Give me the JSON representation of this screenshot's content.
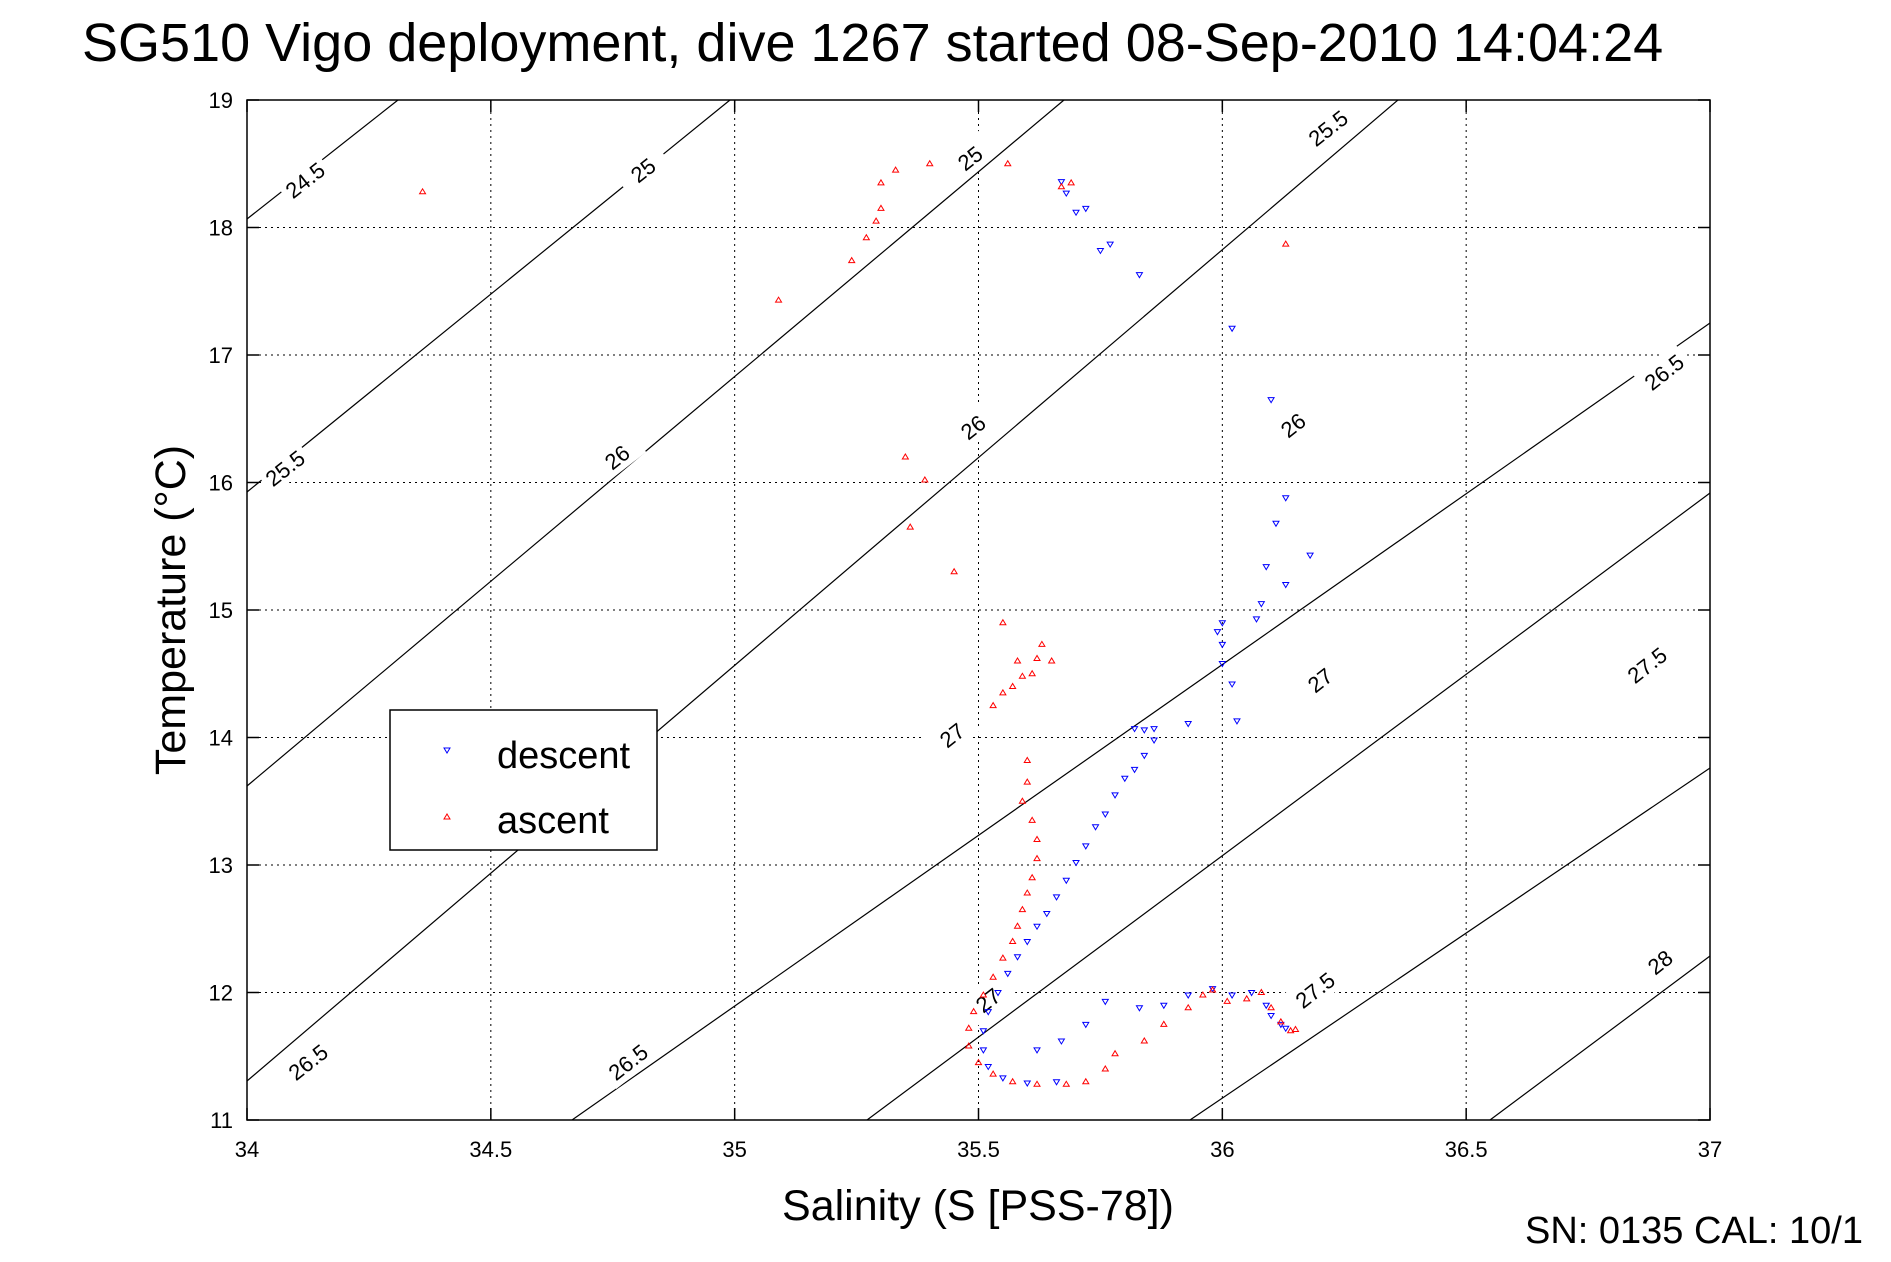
{
  "chart_data": {
    "type": "scatter",
    "title": "SG510 Vigo deployment, dive 1267 started 08-Sep-2010 14:04:24",
    "xlabel": "Salinity (S [PSS-78])",
    "ylabel": "Temperature (°C)",
    "xlim": [
      34,
      37
    ],
    "ylim": [
      11,
      19
    ],
    "xticks": [
      "34",
      "34.5",
      "35",
      "35.5",
      "36",
      "36.5",
      "37"
    ],
    "yticks": [
      "11",
      "12",
      "13",
      "14",
      "15",
      "16",
      "17",
      "18",
      "19"
    ],
    "grid": true,
    "legend_position": "left-middle",
    "isopycnal_labels": [
      "24.5",
      "25",
      "25",
      "25.5",
      "25.5",
      "26",
      "26",
      "26",
      "26.5",
      "26.5",
      "26.5",
      "27",
      "27",
      "27",
      "27.5",
      "27.5",
      "28"
    ],
    "series": [
      {
        "name": "descent",
        "color": "#0000ff",
        "marker": "triangle-down",
        "points": [
          [
            35.67,
            18.36
          ],
          [
            35.68,
            18.27
          ],
          [
            35.7,
            18.12
          ],
          [
            35.72,
            18.15
          ],
          [
            35.75,
            17.82
          ],
          [
            35.77,
            17.87
          ],
          [
            35.83,
            17.63
          ],
          [
            36.02,
            17.21
          ],
          [
            36.1,
            16.65
          ],
          [
            36.13,
            15.88
          ],
          [
            36.11,
            15.68
          ],
          [
            36.18,
            15.43
          ],
          [
            36.09,
            15.34
          ],
          [
            36.13,
            15.2
          ],
          [
            36.08,
            15.05
          ],
          [
            36.07,
            14.93
          ],
          [
            35.99,
            14.83
          ],
          [
            36.0,
            14.9
          ],
          [
            36.0,
            14.73
          ],
          [
            36.0,
            14.58
          ],
          [
            36.02,
            14.42
          ],
          [
            36.03,
            14.13
          ],
          [
            35.93,
            14.11
          ],
          [
            35.82,
            14.07
          ],
          [
            35.84,
            14.06
          ],
          [
            35.86,
            14.07
          ],
          [
            35.86,
            13.98
          ],
          [
            35.84,
            13.86
          ],
          [
            35.82,
            13.75
          ],
          [
            35.8,
            13.68
          ],
          [
            35.78,
            13.55
          ],
          [
            35.76,
            13.4
          ],
          [
            35.74,
            13.3
          ],
          [
            35.72,
            13.15
          ],
          [
            35.7,
            13.02
          ],
          [
            35.68,
            12.88
          ],
          [
            35.66,
            12.75
          ],
          [
            35.64,
            12.62
          ],
          [
            35.62,
            12.52
          ],
          [
            35.6,
            12.4
          ],
          [
            35.58,
            12.28
          ],
          [
            35.56,
            12.15
          ],
          [
            35.54,
            12.0
          ],
          [
            35.52,
            11.85
          ],
          [
            35.51,
            11.7
          ],
          [
            35.51,
            11.55
          ],
          [
            35.52,
            11.42
          ],
          [
            35.55,
            11.33
          ],
          [
            35.6,
            11.29
          ],
          [
            35.66,
            11.3
          ],
          [
            35.62,
            11.55
          ],
          [
            35.67,
            11.62
          ],
          [
            35.72,
            11.75
          ],
          [
            35.76,
            11.93
          ],
          [
            35.83,
            11.88
          ],
          [
            35.88,
            11.9
          ],
          [
            35.93,
            11.98
          ],
          [
            35.98,
            12.03
          ],
          [
            36.02,
            11.98
          ],
          [
            36.06,
            12.0
          ],
          [
            36.09,
            11.9
          ],
          [
            36.1,
            11.82
          ],
          [
            36.12,
            11.75
          ],
          [
            36.13,
            11.72
          ]
        ]
      },
      {
        "name": "ascent",
        "color": "#ff0000",
        "marker": "triangle-up",
        "points": [
          [
            34.36,
            18.28
          ],
          [
            35.09,
            17.43
          ],
          [
            35.24,
            17.74
          ],
          [
            35.27,
            17.92
          ],
          [
            35.29,
            18.05
          ],
          [
            35.3,
            18.15
          ],
          [
            35.3,
            18.35
          ],
          [
            35.33,
            18.45
          ],
          [
            35.4,
            18.5
          ],
          [
            35.56,
            18.5
          ],
          [
            35.69,
            18.35
          ],
          [
            35.67,
            18.32
          ],
          [
            36.13,
            17.87
          ],
          [
            35.35,
            16.2
          ],
          [
            35.39,
            16.02
          ],
          [
            35.36,
            15.65
          ],
          [
            35.45,
            15.3
          ],
          [
            35.55,
            14.9
          ],
          [
            35.63,
            14.73
          ],
          [
            35.62,
            14.62
          ],
          [
            35.65,
            14.6
          ],
          [
            35.58,
            14.6
          ],
          [
            35.59,
            14.48
          ],
          [
            35.55,
            14.35
          ],
          [
            35.57,
            14.4
          ],
          [
            35.61,
            14.5
          ],
          [
            35.53,
            14.25
          ],
          [
            35.6,
            13.82
          ],
          [
            35.6,
            13.65
          ],
          [
            35.59,
            13.5
          ],
          [
            35.61,
            13.35
          ],
          [
            35.62,
            13.2
          ],
          [
            35.62,
            13.05
          ],
          [
            35.61,
            12.9
          ],
          [
            35.6,
            12.78
          ],
          [
            35.59,
            12.65
          ],
          [
            35.58,
            12.52
          ],
          [
            35.57,
            12.4
          ],
          [
            35.55,
            12.27
          ],
          [
            35.53,
            12.12
          ],
          [
            35.51,
            11.98
          ],
          [
            35.49,
            11.85
          ],
          [
            35.48,
            11.72
          ],
          [
            35.48,
            11.58
          ],
          [
            35.5,
            11.45
          ],
          [
            35.53,
            11.36
          ],
          [
            35.57,
            11.3
          ],
          [
            35.62,
            11.28
          ],
          [
            35.68,
            11.28
          ],
          [
            35.72,
            11.3
          ],
          [
            35.76,
            11.4
          ],
          [
            35.78,
            11.52
          ],
          [
            35.84,
            11.62
          ],
          [
            35.88,
            11.75
          ],
          [
            35.93,
            11.88
          ],
          [
            35.96,
            11.98
          ],
          [
            35.98,
            12.02
          ],
          [
            36.01,
            11.93
          ],
          [
            36.05,
            11.95
          ],
          [
            36.08,
            12.0
          ],
          [
            36.1,
            11.88
          ],
          [
            36.12,
            11.77
          ],
          [
            36.14,
            11.7
          ],
          [
            36.15,
            11.71
          ]
        ]
      }
    ]
  },
  "legend": {
    "descent": "descent",
    "ascent": "ascent"
  },
  "footer": {
    "text": "SN: 0135  CAL: 10/1"
  }
}
